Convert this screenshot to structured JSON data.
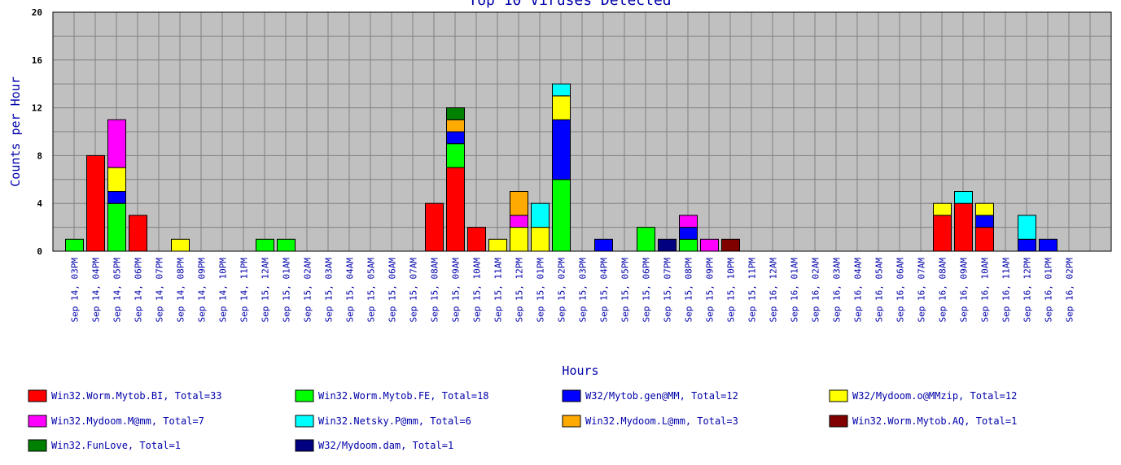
{
  "chart_data": {
    "type": "bar",
    "stacked": true,
    "title": "Top 10 Viruses Detected",
    "xlabel": "Hours",
    "ylabel": "Counts per Hour",
    "ylim": [
      0,
      20
    ],
    "yticks": [
      0,
      4,
      8,
      12,
      16,
      20
    ],
    "grid": true,
    "legend_position": "bottom",
    "categories": [
      "Sep 14, 03PM",
      "Sep 14, 04PM",
      "Sep 14, 05PM",
      "Sep 14, 06PM",
      "Sep 14, 07PM",
      "Sep 14, 08PM",
      "Sep 14, 09PM",
      "Sep 14, 10PM",
      "Sep 14, 11PM",
      "Sep 15, 12AM",
      "Sep 15, 01AM",
      "Sep 15, 02AM",
      "Sep 15, 03AM",
      "Sep 15, 04AM",
      "Sep 15, 05AM",
      "Sep 15, 06AM",
      "Sep 15, 07AM",
      "Sep 15, 08AM",
      "Sep 15, 09AM",
      "Sep 15, 10AM",
      "Sep 15, 11AM",
      "Sep 15, 12PM",
      "Sep 15, 01PM",
      "Sep 15, 02PM",
      "Sep 15, 03PM",
      "Sep 15, 04PM",
      "Sep 15, 05PM",
      "Sep 15, 06PM",
      "Sep 15, 07PM",
      "Sep 15, 08PM",
      "Sep 15, 09PM",
      "Sep 15, 10PM",
      "Sep 15, 11PM",
      "Sep 16, 12AM",
      "Sep 16, 01AM",
      "Sep 16, 02AM",
      "Sep 16, 03AM",
      "Sep 16, 04AM",
      "Sep 16, 05AM",
      "Sep 16, 06AM",
      "Sep 16, 07AM",
      "Sep 16, 08AM",
      "Sep 16, 09AM",
      "Sep 16, 10AM",
      "Sep 16, 11AM",
      "Sep 16, 12PM",
      "Sep 16, 01PM",
      "Sep 16, 02PM"
    ],
    "series": [
      {
        "name": "Win32.Worm.Mytob.BI, Total=33",
        "color": "#ff0000",
        "values": [
          0,
          8,
          0,
          3,
          0,
          0,
          0,
          0,
          0,
          0,
          0,
          0,
          0,
          0,
          0,
          0,
          0,
          4,
          7,
          2,
          0,
          0,
          0,
          0,
          0,
          0,
          0,
          0,
          0,
          0,
          0,
          0,
          0,
          0,
          0,
          0,
          0,
          0,
          0,
          0,
          0,
          3,
          4,
          2,
          0,
          0,
          0,
          0
        ]
      },
      {
        "name": "Win32.Worm.Mytob.FE, Total=18",
        "color": "#00ff00",
        "values": [
          1,
          0,
          4,
          0,
          0,
          0,
          0,
          0,
          0,
          1,
          1,
          0,
          0,
          0,
          0,
          0,
          0,
          0,
          2,
          0,
          0,
          0,
          0,
          6,
          0,
          0,
          0,
          2,
          0,
          1,
          0,
          0,
          0,
          0,
          0,
          0,
          0,
          0,
          0,
          0,
          0,
          0,
          0,
          0,
          0,
          0,
          0,
          0
        ]
      },
      {
        "name": "W32/Mytob.gen@MM, Total=12",
        "color": "#0000ff",
        "values": [
          0,
          0,
          1,
          0,
          0,
          0,
          0,
          0,
          0,
          0,
          0,
          0,
          0,
          0,
          0,
          0,
          0,
          0,
          1,
          0,
          0,
          0,
          0,
          5,
          0,
          1,
          0,
          0,
          0,
          1,
          0,
          0,
          0,
          0,
          0,
          0,
          0,
          0,
          0,
          0,
          0,
          0,
          0,
          1,
          0,
          1,
          1,
          0
        ]
      },
      {
        "name": "W32/Mydoom.o@MMzip, Total=12",
        "color": "#ffff00",
        "values": [
          0,
          0,
          2,
          0,
          0,
          1,
          0,
          0,
          0,
          0,
          0,
          0,
          0,
          0,
          0,
          0,
          0,
          0,
          0,
          0,
          1,
          2,
          2,
          2,
          0,
          0,
          0,
          0,
          0,
          0,
          0,
          0,
          0,
          0,
          0,
          0,
          0,
          0,
          0,
          0,
          0,
          1,
          0,
          1,
          0,
          0,
          0,
          0
        ]
      },
      {
        "name": "Win32.Mydoom.M@mm, Total=7",
        "color": "#ff00ff",
        "values": [
          0,
          0,
          4,
          0,
          0,
          0,
          0,
          0,
          0,
          0,
          0,
          0,
          0,
          0,
          0,
          0,
          0,
          0,
          0,
          0,
          0,
          1,
          0,
          0,
          0,
          0,
          0,
          0,
          0,
          1,
          1,
          0,
          0,
          0,
          0,
          0,
          0,
          0,
          0,
          0,
          0,
          0,
          0,
          0,
          0,
          0,
          0,
          0
        ]
      },
      {
        "name": "Win32.Netsky.P@mm, Total=6",
        "color": "#00ffff",
        "values": [
          0,
          0,
          0,
          0,
          0,
          0,
          0,
          0,
          0,
          0,
          0,
          0,
          0,
          0,
          0,
          0,
          0,
          0,
          0,
          0,
          0,
          0,
          2,
          1,
          0,
          0,
          0,
          0,
          0,
          0,
          0,
          0,
          0,
          0,
          0,
          0,
          0,
          0,
          0,
          0,
          0,
          0,
          1,
          0,
          0,
          2,
          0,
          0
        ]
      },
      {
        "name": "Win32.Mydoom.L@mm, Total=3",
        "color": "#ffaa00",
        "values": [
          0,
          0,
          0,
          0,
          0,
          0,
          0,
          0,
          0,
          0,
          0,
          0,
          0,
          0,
          0,
          0,
          0,
          0,
          1,
          0,
          0,
          2,
          0,
          0,
          0,
          0,
          0,
          0,
          0,
          0,
          0,
          0,
          0,
          0,
          0,
          0,
          0,
          0,
          0,
          0,
          0,
          0,
          0,
          0,
          0,
          0,
          0,
          0
        ]
      },
      {
        "name": "Win32.Worm.Mytob.AQ, Total=1",
        "color": "#800000",
        "values": [
          0,
          0,
          0,
          0,
          0,
          0,
          0,
          0,
          0,
          0,
          0,
          0,
          0,
          0,
          0,
          0,
          0,
          0,
          0,
          0,
          0,
          0,
          0,
          0,
          0,
          0,
          0,
          0,
          0,
          0,
          0,
          1,
          0,
          0,
          0,
          0,
          0,
          0,
          0,
          0,
          0,
          0,
          0,
          0,
          0,
          0,
          0,
          0
        ]
      },
      {
        "name": "Win32.FunLove, Total=1",
        "color": "#008000",
        "values": [
          0,
          0,
          0,
          0,
          0,
          0,
          0,
          0,
          0,
          0,
          0,
          0,
          0,
          0,
          0,
          0,
          0,
          0,
          1,
          0,
          0,
          0,
          0,
          0,
          0,
          0,
          0,
          0,
          0,
          0,
          0,
          0,
          0,
          0,
          0,
          0,
          0,
          0,
          0,
          0,
          0,
          0,
          0,
          0,
          0,
          0,
          0,
          0
        ]
      },
      {
        "name": "W32/Mydoom.dam, Total=1",
        "color": "#000080",
        "values": [
          0,
          0,
          0,
          0,
          0,
          0,
          0,
          0,
          0,
          0,
          0,
          0,
          0,
          0,
          0,
          0,
          0,
          0,
          0,
          0,
          0,
          0,
          0,
          0,
          0,
          0,
          0,
          0,
          1,
          0,
          0,
          0,
          0,
          0,
          0,
          0,
          0,
          0,
          0,
          0,
          0,
          0,
          0,
          0,
          0,
          0,
          0,
          0
        ]
      }
    ]
  }
}
